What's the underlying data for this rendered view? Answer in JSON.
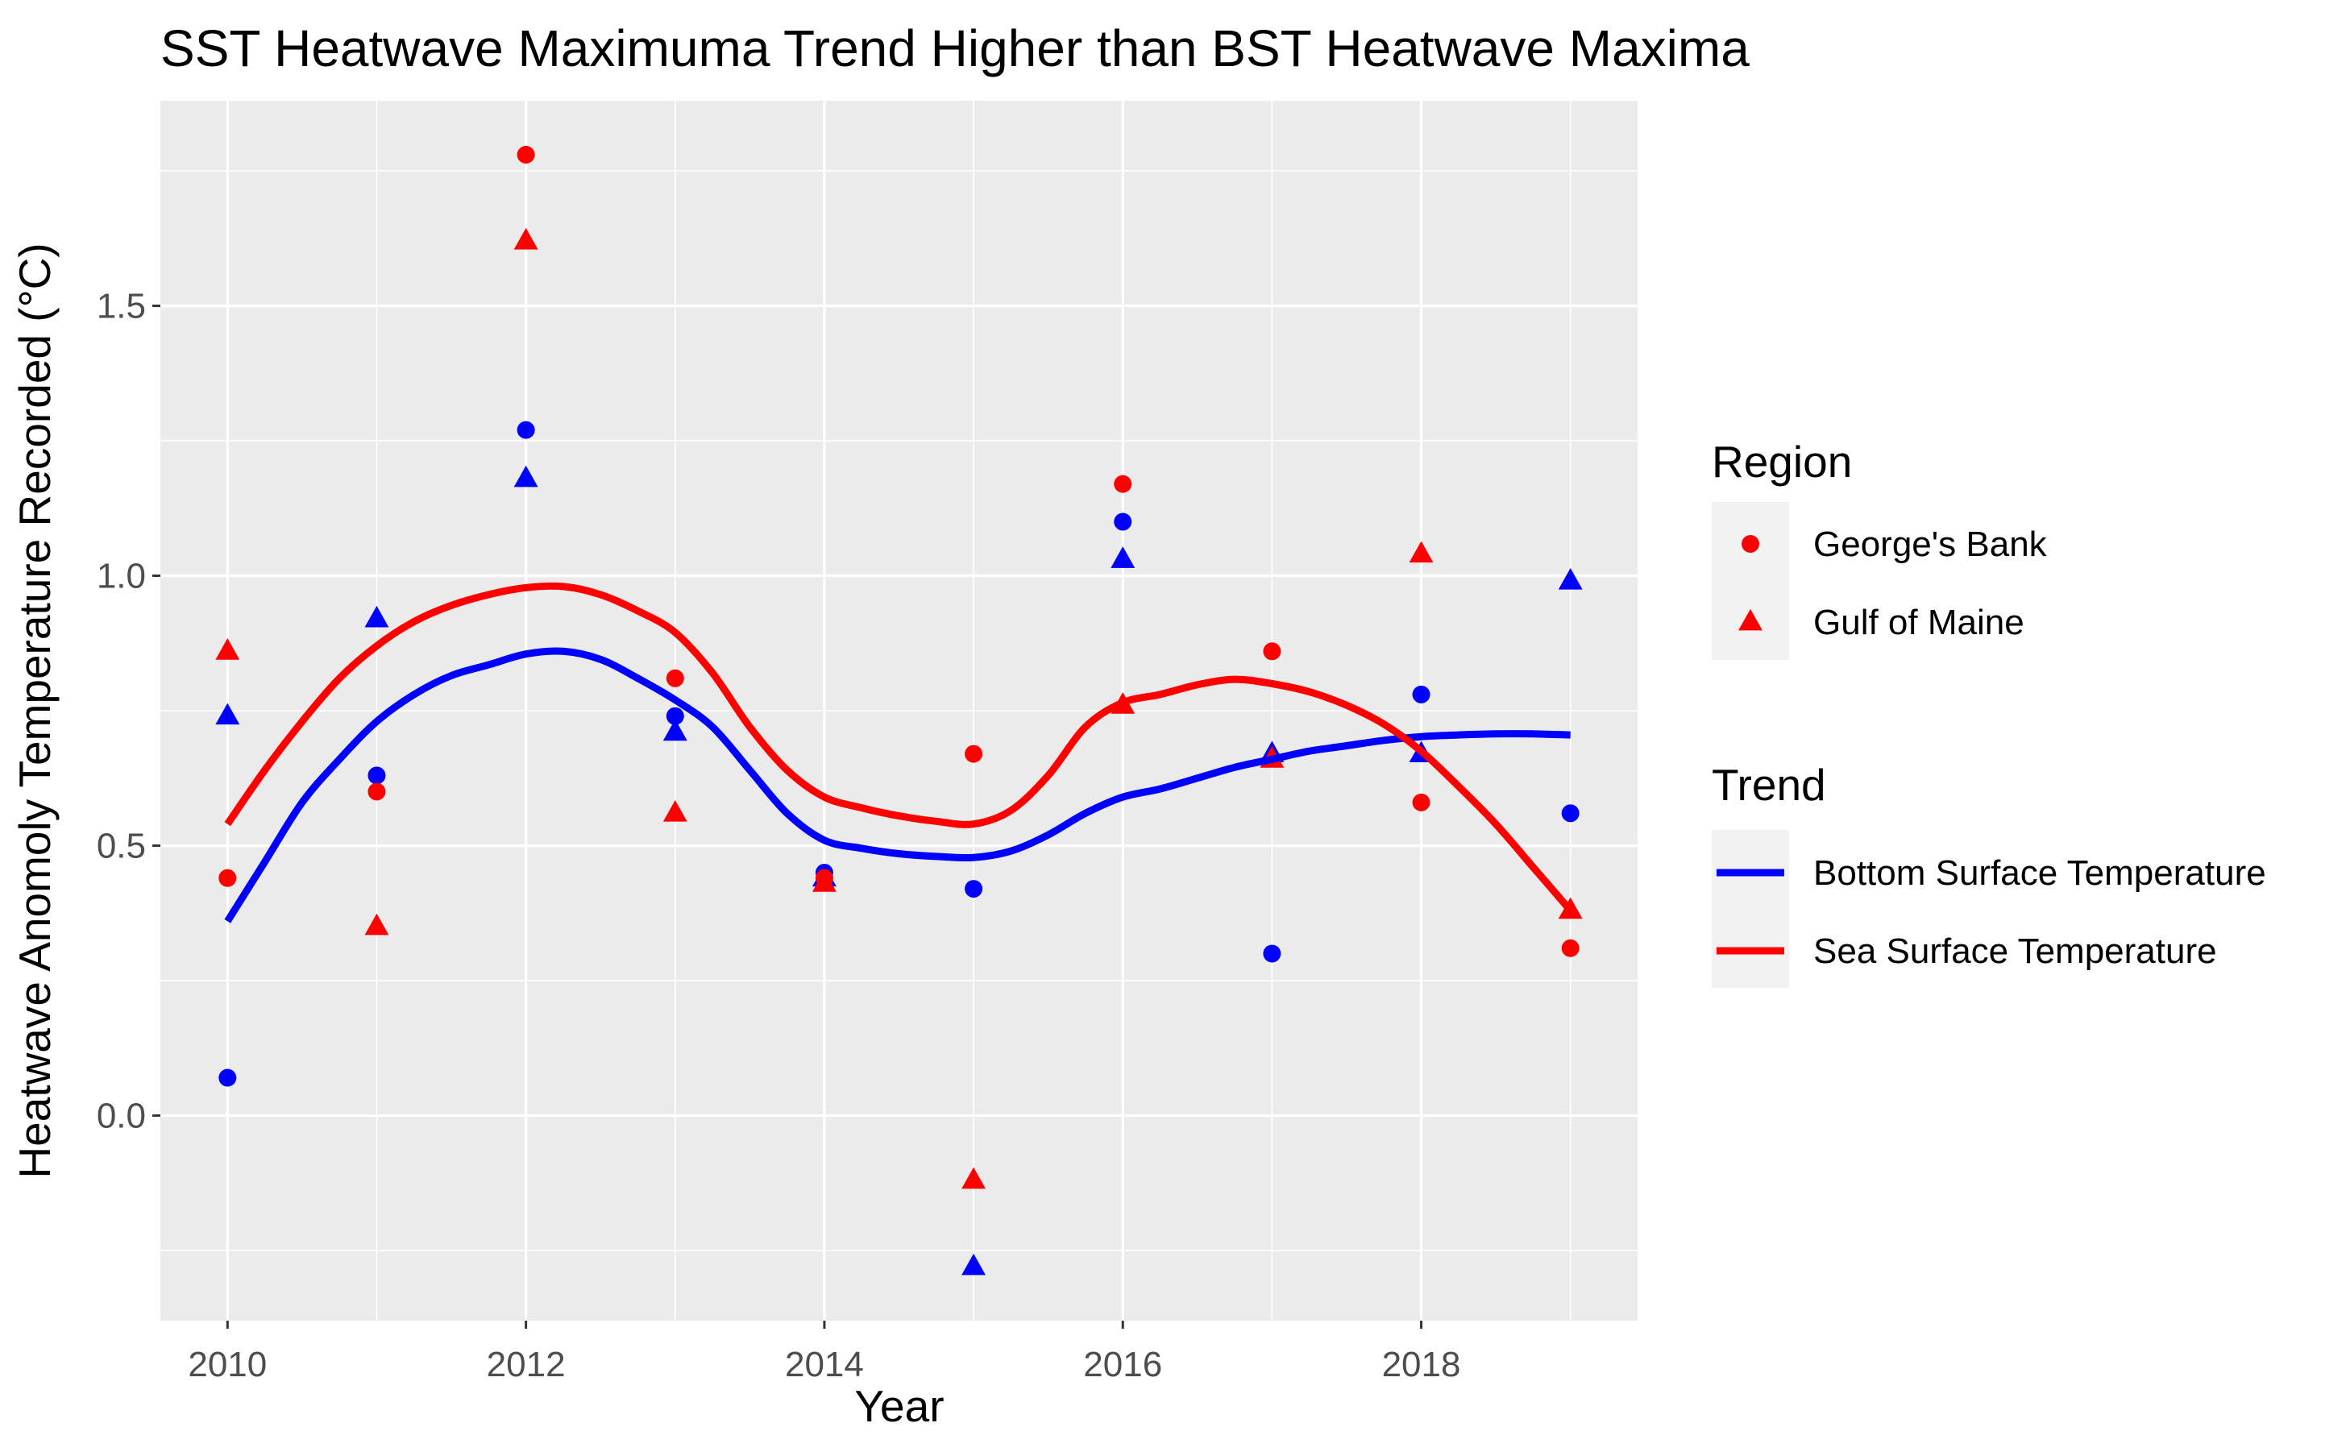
{
  "chart_data": {
    "type": "scatter",
    "title": "SST Heatwave Maximuma Trend Higher than BST Heatwave Maxima",
    "xlabel": "Year",
    "ylabel": "Heatwave Anomoly Temperature Recorded (°C)",
    "xlim": [
      2009.55,
      2019.45
    ],
    "ylim": [
      -0.38,
      1.88
    ],
    "x_ticks": [
      2010,
      2012,
      2014,
      2016,
      2018
    ],
    "x_tick_labels": [
      "2010",
      "2012",
      "2014",
      "2016",
      "2018"
    ],
    "y_ticks": [
      0.0,
      0.5,
      1.0,
      1.5
    ],
    "y_tick_labels": [
      "0.0",
      "0.5",
      "1.0",
      "1.5"
    ],
    "grid": true,
    "legend_position": "right",
    "colors": {
      "panel": "#ebebeb",
      "grid": "#ffffff",
      "bottom": "#0000ff",
      "sea": "#ff0000",
      "tick": "#333333"
    },
    "region_legend": {
      "title": "Region",
      "entries": [
        {
          "label": "George's Bank",
          "shape": "circle"
        },
        {
          "label": "Gulf of Maine",
          "shape": "triangle"
        }
      ]
    },
    "trend_legend": {
      "title": "Trend",
      "entries": [
        {
          "label": "Bottom Surface Temperature",
          "color": "#0000ff"
        },
        {
          "label": "Sea Surface Temperature",
          "color": "#ff0000"
        }
      ]
    },
    "points": [
      {
        "series": "Bottom Surface Temperature",
        "region": "George's Bank",
        "values": [
          [
            2010,
            0.07
          ],
          [
            2011,
            0.63
          ],
          [
            2012,
            1.27
          ],
          [
            2013,
            0.74
          ],
          [
            2014,
            0.45
          ],
          [
            2015,
            0.42
          ],
          [
            2016,
            1.1
          ],
          [
            2017,
            0.3
          ],
          [
            2018,
            0.78
          ],
          [
            2019,
            0.56
          ]
        ]
      },
      {
        "series": "Bottom Surface Temperature",
        "region": "Gulf of Maine",
        "values": [
          [
            2010,
            0.74
          ],
          [
            2011,
            0.92
          ],
          [
            2012,
            1.18
          ],
          [
            2013,
            0.71
          ],
          [
            2014,
            0.44
          ],
          [
            2015,
            -0.28
          ],
          [
            2016,
            1.03
          ],
          [
            2017,
            0.67
          ],
          [
            2018,
            0.67
          ],
          [
            2019,
            0.99
          ]
        ]
      },
      {
        "series": "Sea Surface Temperature",
        "region": "George's Bank",
        "values": [
          [
            2010,
            0.44
          ],
          [
            2011,
            0.6
          ],
          [
            2012,
            1.78
          ],
          [
            2013,
            0.81
          ],
          [
            2014,
            0.44
          ],
          [
            2015,
            0.67
          ],
          [
            2016,
            1.17
          ],
          [
            2017,
            0.86
          ],
          [
            2018,
            0.58
          ],
          [
            2019,
            0.31
          ]
        ]
      },
      {
        "series": "Sea Surface Temperature",
        "region": "Gulf of Maine",
        "values": [
          [
            2010,
            0.86
          ],
          [
            2011,
            0.35
          ],
          [
            2012,
            1.62
          ],
          [
            2013,
            0.56
          ],
          [
            2014,
            0.43
          ],
          [
            2015,
            -0.12
          ],
          [
            2016,
            0.76
          ],
          [
            2017,
            0.66
          ],
          [
            2018,
            1.04
          ],
          [
            2019,
            0.38
          ]
        ]
      }
    ],
    "trends": [
      {
        "name": "Bottom Surface Temperature",
        "values": [
          [
            2010,
            0.36
          ],
          [
            2010.25,
            0.47
          ],
          [
            2010.5,
            0.58
          ],
          [
            2010.75,
            0.66
          ],
          [
            2011,
            0.73
          ],
          [
            2011.25,
            0.78
          ],
          [
            2011.5,
            0.815
          ],
          [
            2011.75,
            0.835
          ],
          [
            2012,
            0.855
          ],
          [
            2012.25,
            0.86
          ],
          [
            2012.5,
            0.845
          ],
          [
            2012.75,
            0.81
          ],
          [
            2013,
            0.77
          ],
          [
            2013.25,
            0.72
          ],
          [
            2013.5,
            0.64
          ],
          [
            2013.75,
            0.56
          ],
          [
            2014,
            0.51
          ],
          [
            2014.25,
            0.495
          ],
          [
            2014.5,
            0.485
          ],
          [
            2014.75,
            0.48
          ],
          [
            2015,
            0.478
          ],
          [
            2015.25,
            0.49
          ],
          [
            2015.5,
            0.52
          ],
          [
            2015.75,
            0.56
          ],
          [
            2016,
            0.59
          ],
          [
            2016.25,
            0.605
          ],
          [
            2016.5,
            0.625
          ],
          [
            2016.75,
            0.645
          ],
          [
            2017,
            0.66
          ],
          [
            2017.25,
            0.675
          ],
          [
            2017.5,
            0.685
          ],
          [
            2017.75,
            0.695
          ],
          [
            2018,
            0.702
          ],
          [
            2018.25,
            0.705
          ],
          [
            2018.5,
            0.707
          ],
          [
            2018.75,
            0.707
          ],
          [
            2019,
            0.705
          ]
        ]
      },
      {
        "name": "Sea Surface Temperature",
        "values": [
          [
            2010,
            0.54
          ],
          [
            2010.25,
            0.64
          ],
          [
            2010.5,
            0.73
          ],
          [
            2010.75,
            0.81
          ],
          [
            2011,
            0.87
          ],
          [
            2011.25,
            0.915
          ],
          [
            2011.5,
            0.945
          ],
          [
            2011.75,
            0.965
          ],
          [
            2012,
            0.978
          ],
          [
            2012.25,
            0.98
          ],
          [
            2012.5,
            0.965
          ],
          [
            2012.75,
            0.935
          ],
          [
            2013,
            0.895
          ],
          [
            2013.25,
            0.82
          ],
          [
            2013.5,
            0.72
          ],
          [
            2013.75,
            0.64
          ],
          [
            2014,
            0.59
          ],
          [
            2014.25,
            0.57
          ],
          [
            2014.5,
            0.555
          ],
          [
            2014.75,
            0.545
          ],
          [
            2015,
            0.54
          ],
          [
            2015.25,
            0.565
          ],
          [
            2015.5,
            0.63
          ],
          [
            2015.75,
            0.72
          ],
          [
            2016,
            0.765
          ],
          [
            2016.25,
            0.78
          ],
          [
            2016.5,
            0.798
          ],
          [
            2016.75,
            0.808
          ],
          [
            2017,
            0.8
          ],
          [
            2017.25,
            0.785
          ],
          [
            2017.5,
            0.76
          ],
          [
            2017.75,
            0.725
          ],
          [
            2018,
            0.675
          ],
          [
            2018.25,
            0.61
          ],
          [
            2018.5,
            0.54
          ],
          [
            2018.75,
            0.46
          ],
          [
            2019,
            0.38
          ]
        ]
      }
    ]
  }
}
